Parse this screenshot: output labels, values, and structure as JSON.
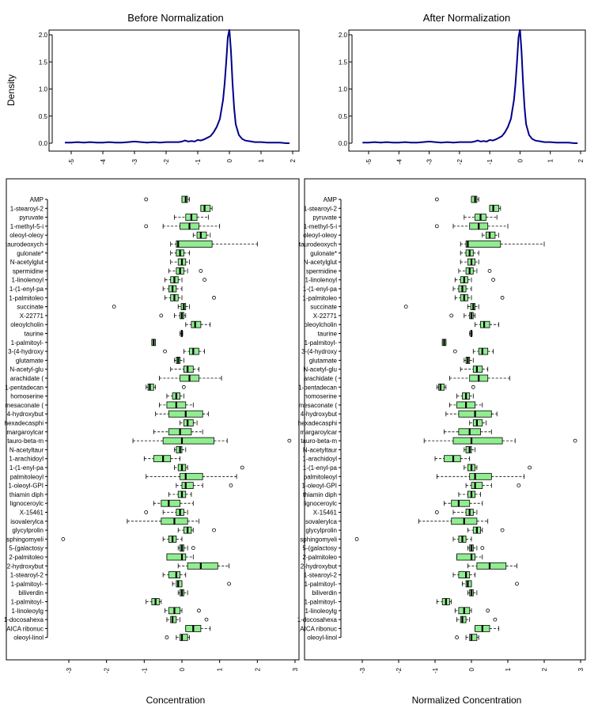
{
  "chart_data": {
    "type": "boxplot",
    "categories": [
      "AMP",
      "1-stearoyl-2",
      "pyruvate",
      "1-methyl-5-i",
      "oleoyl-oleoy",
      "taurodeoxych",
      "gulonate*",
      "N-acetylglut",
      "spermidine",
      "1-linolenoyl",
      "1-(1-enyl-pa",
      "1-palmitoleo",
      "succinate",
      "X-22771",
      "oleoylcholin",
      "taurine",
      "1-palmitoyl-",
      "3-(4-hydroxy",
      "glutamate",
      "N-acetyl-glu",
      "arachidate (",
      "1-pentadecan",
      "homoserine",
      "mesaconate (",
      "4-hydroxybut",
      "hexadecasphi",
      "margaroylcar",
      "tauro-beta-m",
      "N-acetyltaur",
      "1-arachidoyl",
      "1-(1-enyl-pa",
      "palmitoleoyl",
      "1-oleoyl-GPI",
      "thiamin diph",
      "lignoceroylc",
      "X-15461",
      "isovalerylca",
      "glycylprolin",
      "sphingomyeli",
      "5-(galactosy",
      "2-palmitoleo",
      "2-hydroxybut",
      "1-stearoyl-2",
      "1-palmitoyl-",
      "biliverdin",
      "1-palmitoyl-",
      "1-linoleoylg",
      "1-docosahexa",
      "AICA ribonuc",
      "oleoyl-linol"
    ],
    "stats": [
      [
        0.0,
        0.0,
        0.1,
        0.15,
        0.2,
        [
          -0.95
        ]
      ],
      [
        0.5,
        0.5,
        0.6,
        0.75,
        0.8,
        []
      ],
      [
        -0.2,
        0.1,
        0.25,
        0.4,
        0.7,
        []
      ],
      [
        -0.5,
        -0.05,
        0.2,
        0.45,
        1.0,
        [
          -0.95
        ]
      ],
      [
        0.3,
        0.4,
        0.5,
        0.65,
        0.75,
        []
      ],
      [
        -0.3,
        -0.15,
        -0.1,
        0.8,
        2.0,
        []
      ],
      [
        -0.3,
        -0.15,
        -0.05,
        0.05,
        0.2,
        []
      ],
      [
        -0.3,
        -0.1,
        0.0,
        0.1,
        0.2,
        []
      ],
      [
        -0.35,
        -0.15,
        -0.05,
        0.05,
        0.15,
        [
          0.5
        ]
      ],
      [
        -0.45,
        -0.3,
        -0.2,
        -0.1,
        0.0,
        [
          0.6
        ]
      ],
      [
        -0.5,
        -0.35,
        -0.25,
        -0.15,
        0.0,
        []
      ],
      [
        -0.45,
        -0.3,
        -0.2,
        -0.1,
        0.0,
        [
          0.85
        ]
      ],
      [
        -0.1,
        -0.02,
        0.05,
        0.1,
        0.2,
        [
          -1.8
        ]
      ],
      [
        -0.2,
        -0.05,
        0.0,
        0.05,
        0.1,
        [
          -0.55
        ]
      ],
      [
        0.1,
        0.25,
        0.35,
        0.5,
        0.75,
        []
      ],
      [
        -0.05,
        -0.02,
        0.0,
        0.0,
        0.02,
        []
      ],
      [
        -0.8,
        -0.8,
        -0.75,
        -0.7,
        -0.7,
        []
      ],
      [
        0.05,
        0.2,
        0.3,
        0.45,
        0.6,
        [
          -0.45
        ]
      ],
      [
        -0.2,
        -0.15,
        -0.1,
        -0.05,
        0.05,
        []
      ],
      [
        -0.3,
        0.05,
        0.15,
        0.3,
        0.45,
        []
      ],
      [
        -0.6,
        -0.05,
        0.2,
        0.45,
        1.05,
        []
      ],
      [
        -0.95,
        -0.9,
        -0.85,
        -0.75,
        -0.7,
        [
          0.05
        ]
      ],
      [
        -0.4,
        -0.25,
        -0.15,
        -0.05,
        0.05,
        []
      ],
      [
        -0.6,
        -0.4,
        -0.15,
        0.1,
        0.3,
        []
      ],
      [
        -0.7,
        -0.35,
        0.1,
        0.55,
        0.7,
        []
      ],
      [
        -0.05,
        0.05,
        0.15,
        0.3,
        0.4,
        []
      ],
      [
        -0.75,
        -0.35,
        -0.05,
        0.25,
        0.55,
        []
      ],
      [
        -1.3,
        -0.5,
        0.0,
        0.85,
        1.2,
        [
          2.85
        ]
      ],
      [
        -0.2,
        -0.15,
        -0.05,
        0.0,
        0.1,
        []
      ],
      [
        -1.0,
        -0.75,
        -0.5,
        -0.3,
        -0.05,
        []
      ],
      [
        -0.2,
        -0.1,
        0.0,
        0.1,
        0.15,
        [
          1.6
        ]
      ],
      [
        -0.95,
        -0.05,
        0.1,
        0.55,
        1.45,
        []
      ],
      [
        -0.15,
        0.0,
        0.1,
        0.3,
        0.55,
        [
          1.3
        ]
      ],
      [
        -0.35,
        -0.1,
        0.0,
        0.1,
        0.25,
        []
      ],
      [
        -0.75,
        -0.55,
        -0.35,
        -0.05,
        0.3,
        []
      ],
      [
        -0.5,
        -0.15,
        -0.05,
        0.05,
        0.15,
        [
          -0.95
        ]
      ],
      [
        -1.45,
        -0.55,
        -0.2,
        0.15,
        0.45,
        []
      ],
      [
        -0.1,
        0.05,
        0.15,
        0.25,
        0.3,
        [
          0.85
        ]
      ],
      [
        -0.5,
        -0.35,
        -0.25,
        -0.15,
        0.0,
        [
          -3.15
        ]
      ],
      [
        -0.1,
        -0.05,
        0.0,
        0.05,
        0.15,
        [
          0.3
        ]
      ],
      [
        -0.4,
        -0.4,
        0.0,
        0.1,
        0.3,
        []
      ],
      [
        -0.1,
        0.15,
        0.5,
        0.95,
        1.25,
        []
      ],
      [
        -0.5,
        -0.35,
        -0.15,
        -0.05,
        0.1,
        []
      ],
      [
        -0.25,
        -0.15,
        -0.1,
        0.0,
        0.0,
        [
          1.25
        ]
      ],
      [
        -0.1,
        -0.05,
        0.0,
        0.05,
        0.15,
        []
      ],
      [
        -0.95,
        -0.8,
        -0.7,
        -0.6,
        -0.55,
        []
      ],
      [
        -0.45,
        -0.35,
        -0.2,
        -0.05,
        0.0,
        [
          0.45
        ]
      ],
      [
        -0.4,
        -0.3,
        -0.25,
        -0.15,
        -0.05,
        [
          0.65
        ]
      ],
      [
        0.1,
        0.1,
        0.3,
        0.5,
        0.75,
        []
      ],
      [
        -0.15,
        -0.05,
        0.0,
        0.15,
        0.2,
        [
          -0.4
        ]
      ]
    ],
    "panels": [
      {
        "title": "Before Normalization",
        "xlabel": "Concentration",
        "ylabel": "Density",
        "density": {
          "xlim": [
            -5.3,
            2.1
          ],
          "ylim": [
            0,
            2.2
          ],
          "xticks": [
            -5,
            -4,
            -3,
            -2,
            -1,
            0,
            1,
            2
          ],
          "yticks": [
            0.0,
            0.5,
            1.0,
            1.5,
            2.0
          ]
        },
        "box": {
          "xlim": [
            -3.25,
            3.0
          ],
          "xticks": [
            -3,
            -2,
            -1,
            0,
            1,
            2,
            3
          ]
        }
      },
      {
        "title": "After Normalization",
        "xlabel": "Normalized Concentration",
        "ylabel": "",
        "density": {
          "xlim": [
            -5.3,
            2.1
          ],
          "ylim": [
            0,
            2.2
          ],
          "xticks": [
            -5,
            -4,
            -3,
            -2,
            -1,
            0,
            1,
            2
          ],
          "yticks": [
            0.0,
            0.5,
            1.0,
            1.5,
            2.0
          ]
        },
        "box": {
          "xlim": [
            -3.25,
            3.0
          ],
          "xticks": [
            -3,
            -2,
            -1,
            0,
            1,
            2,
            3
          ]
        }
      }
    ],
    "density_curve": {
      "x": [
        -5.2,
        -5.0,
        -4.8,
        -4.6,
        -4.4,
        -4.2,
        -4.0,
        -3.8,
        -3.6,
        -3.4,
        -3.2,
        -3.0,
        -2.8,
        -2.6,
        -2.4,
        -2.2,
        -2.0,
        -1.8,
        -1.6,
        -1.5,
        -1.4,
        -1.3,
        -1.2,
        -1.1,
        -1.0,
        -0.9,
        -0.8,
        -0.7,
        -0.6,
        -0.5,
        -0.4,
        -0.3,
        -0.2,
        -0.15,
        -0.1,
        -0.05,
        0.0,
        0.05,
        0.1,
        0.15,
        0.2,
        0.3,
        0.4,
        0.5,
        0.6,
        0.7,
        0.8,
        1.0,
        1.2,
        1.4,
        1.6,
        1.8,
        1.9
      ],
      "y": [
        0.01,
        0.01,
        0.02,
        0.01,
        0.02,
        0.01,
        0.01,
        0.02,
        0.01,
        0.01,
        0.02,
        0.03,
        0.02,
        0.01,
        0.02,
        0.01,
        0.02,
        0.02,
        0.02,
        0.03,
        0.05,
        0.03,
        0.04,
        0.03,
        0.06,
        0.05,
        0.07,
        0.1,
        0.13,
        0.2,
        0.3,
        0.45,
        0.8,
        1.1,
        1.5,
        1.95,
        2.1,
        1.7,
        1.1,
        0.65,
        0.35,
        0.15,
        0.08,
        0.05,
        0.04,
        0.03,
        0.02,
        0.02,
        0.01,
        0.01,
        0.01,
        0.0,
        0.0
      ]
    }
  }
}
